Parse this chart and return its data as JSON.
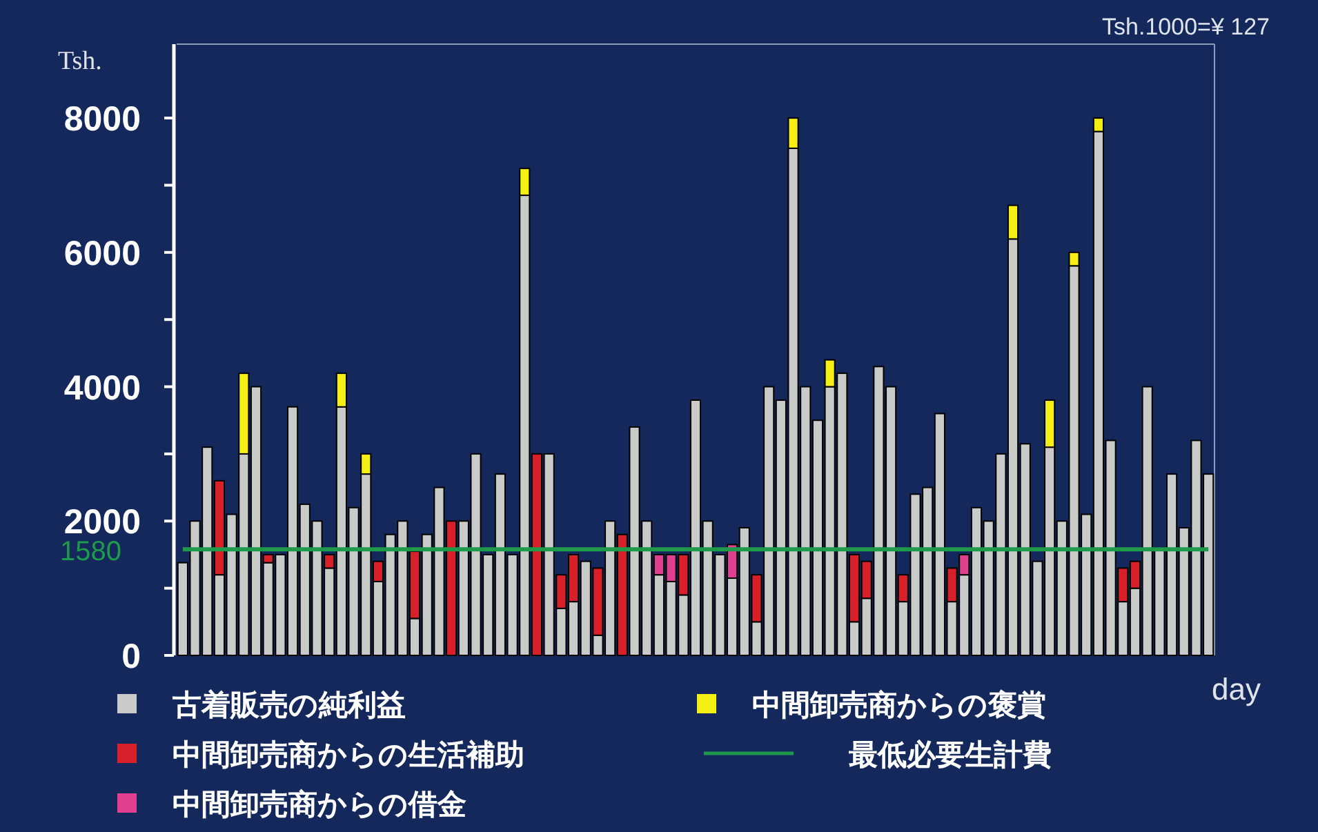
{
  "chart_data": {
    "type": "bar",
    "stacked": true,
    "categories": [
      null,
      null,
      null,
      null,
      null,
      null,
      null,
      null,
      null,
      null,
      null,
      null,
      null,
      null,
      null,
      null,
      null,
      null,
      null,
      null,
      null,
      null,
      null,
      null,
      null,
      null,
      null,
      null,
      null,
      null,
      null,
      null,
      null,
      null,
      null,
      null,
      null,
      null,
      null,
      null,
      null,
      null,
      null,
      null,
      null,
      null,
      null,
      null,
      null,
      null,
      null,
      null,
      null,
      null,
      null,
      null,
      null,
      null,
      null,
      null,
      null,
      null,
      null,
      null,
      null,
      null,
      null,
      null,
      null,
      null,
      null,
      null,
      null,
      null,
      null,
      null,
      null,
      null,
      null,
      null,
      null,
      null,
      null,
      null,
      null
    ],
    "series": [
      {
        "name": "古着販売の純利益",
        "color": "#c8cbc8",
        "values": [
          1380,
          2000,
          3100,
          1200,
          2100,
          3000,
          4000,
          1380,
          1500,
          3700,
          2250,
          2000,
          1300,
          3700,
          2200,
          2700,
          1100,
          1800,
          2000,
          550,
          1800,
          2500,
          null,
          2000,
          3000,
          1500,
          2700,
          1500,
          6850,
          null,
          3000,
          700,
          800,
          1400,
          300,
          2000,
          null,
          3400,
          2000,
          1200,
          1100,
          900,
          3800,
          2000,
          1500,
          1150,
          1900,
          500,
          4000,
          3800,
          7550,
          4000,
          3500,
          4000,
          4200,
          500,
          850,
          4300,
          4000,
          800,
          2400,
          2500,
          3600,
          800,
          1200,
          2200,
          2000,
          3000,
          6200,
          3150,
          1400,
          3100,
          2000,
          5800,
          2100,
          7800,
          3200,
          800,
          1000,
          4000,
          1600,
          2700,
          1900,
          3200,
          2700
        ]
      },
      {
        "name": "中間卸売商からの生活補助",
        "color": "#d7202a",
        "values": [
          null,
          null,
          null,
          1400,
          null,
          null,
          null,
          120,
          null,
          null,
          null,
          null,
          200,
          null,
          null,
          null,
          300,
          null,
          null,
          1000,
          null,
          null,
          2000,
          null,
          null,
          null,
          null,
          null,
          null,
          3000,
          null,
          500,
          700,
          null,
          1000,
          null,
          1800,
          null,
          null,
          null,
          null,
          600,
          null,
          null,
          null,
          null,
          null,
          700,
          null,
          null,
          null,
          null,
          null,
          null,
          null,
          1000,
          550,
          null,
          null,
          400,
          null,
          null,
          null,
          500,
          null,
          null,
          null,
          null,
          null,
          null,
          null,
          null,
          null,
          null,
          null,
          null,
          null,
          500,
          400,
          null,
          null,
          null,
          null,
          null,
          null
        ]
      },
      {
        "name": "中間卸売商からの借金",
        "color": "#e0408f",
        "values": [
          null,
          null,
          null,
          null,
          null,
          null,
          null,
          null,
          null,
          null,
          null,
          null,
          null,
          null,
          null,
          null,
          null,
          null,
          null,
          null,
          null,
          null,
          null,
          null,
          null,
          null,
          null,
          null,
          null,
          null,
          null,
          null,
          null,
          null,
          null,
          null,
          null,
          null,
          null,
          300,
          400,
          null,
          null,
          null,
          null,
          500,
          null,
          null,
          null,
          null,
          null,
          null,
          null,
          null,
          null,
          null,
          null,
          null,
          null,
          null,
          null,
          null,
          null,
          null,
          300,
          null,
          null,
          null,
          null,
          null,
          null,
          null,
          null,
          null,
          null,
          null,
          null,
          null,
          null,
          null,
          null,
          null,
          null,
          null,
          null
        ]
      },
      {
        "name": "中間卸売商からの褒賞",
        "color": "#f5ef14",
        "values": [
          null,
          null,
          null,
          null,
          null,
          1200,
          null,
          null,
          null,
          null,
          null,
          null,
          null,
          500,
          null,
          300,
          null,
          null,
          null,
          null,
          null,
          null,
          null,
          null,
          null,
          null,
          null,
          null,
          400,
          null,
          null,
          null,
          null,
          null,
          null,
          null,
          null,
          null,
          null,
          null,
          null,
          null,
          null,
          null,
          null,
          null,
          null,
          null,
          null,
          null,
          450,
          null,
          null,
          400,
          null,
          null,
          null,
          null,
          null,
          null,
          null,
          null,
          null,
          null,
          null,
          null,
          null,
          null,
          500,
          null,
          null,
          700,
          null,
          200,
          null,
          200,
          null,
          null,
          null,
          null,
          null,
          null,
          null,
          null,
          null
        ]
      },
      {
        "name": "最低必要生計費",
        "color": "#1e9a4a",
        "type": "line",
        "values": [
          1580,
          1580,
          1580,
          1580,
          1580,
          1580,
          1580,
          1580,
          1580,
          1580,
          1580,
          1580,
          1580,
          1580,
          1580,
          1580,
          1580,
          1580,
          1580,
          1580,
          1580,
          1580,
          1580,
          1580,
          1580,
          1580,
          1580,
          1580,
          1580,
          1580,
          1580,
          1580,
          1580,
          1580,
          1580,
          1580,
          1580,
          1580,
          1580,
          1580,
          1580,
          1580,
          1580,
          1580,
          1580,
          1580,
          1580,
          1580,
          1580,
          1580,
          1580,
          1580,
          1580,
          1580,
          1580,
          1580,
          1580,
          1580,
          1580,
          1580,
          1580,
          1580,
          1580,
          1580,
          1580,
          1580,
          1580,
          1580,
          1580,
          1580,
          1580,
          1580,
          1580,
          1580,
          1580,
          1580,
          1580,
          1580,
          1580,
          1580,
          1580,
          1580,
          1580,
          1580,
          1580
        ]
      }
    ],
    "ylabel": "Tsh.",
    "xlabel": "day",
    "ylim": [
      0,
      9100
    ],
    "yticks": [
      0,
      {
        "value": 1000,
        "label": null
      },
      2000,
      {
        "value": 3000,
        "label": null
      },
      4000,
      {
        "value": 5000,
        "label": null
      },
      6000,
      {
        "value": 7000,
        "label": null
      },
      8000
    ],
    "annotations": [
      "Tsh.1000=¥ 127",
      "1580"
    ],
    "legend": "bottom",
    "grid": false
  }
}
